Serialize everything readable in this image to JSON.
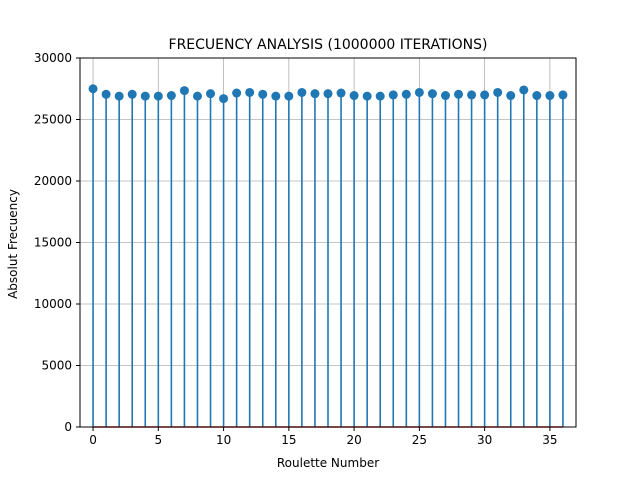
{
  "chart_data": {
    "type": "stem",
    "title": "FRECUENCY ANALYSIS (1000000 ITERATIONS)",
    "xlabel": "Roulette Number",
    "ylabel": "Absolut Frecuency",
    "xlim": [
      -1,
      37
    ],
    "ylim": [
      0,
      30000
    ],
    "xticks": [
      0,
      5,
      10,
      15,
      20,
      25,
      30,
      35
    ],
    "yticks": [
      0,
      5000,
      10000,
      15000,
      20000,
      25000,
      30000
    ],
    "grid": true,
    "colors": {
      "stem": "#1f77b4",
      "baseline": "#d62728",
      "grid": "#b0b0b0"
    },
    "x": [
      0,
      1,
      2,
      3,
      4,
      5,
      6,
      7,
      8,
      9,
      10,
      11,
      12,
      13,
      14,
      15,
      16,
      17,
      18,
      19,
      20,
      21,
      22,
      23,
      24,
      25,
      26,
      27,
      28,
      29,
      30,
      31,
      32,
      33,
      34,
      35,
      36
    ],
    "values": [
      27500,
      27050,
      26900,
      27050,
      26900,
      26900,
      26950,
      27350,
      26900,
      27100,
      26700,
      27150,
      27200,
      27050,
      26900,
      26900,
      27200,
      27100,
      27100,
      27150,
      26950,
      26900,
      26900,
      27000,
      27050,
      27200,
      27100,
      26950,
      27050,
      27000,
      27000,
      27200,
      26950,
      27400,
      26950,
      26950,
      27000
    ]
  }
}
